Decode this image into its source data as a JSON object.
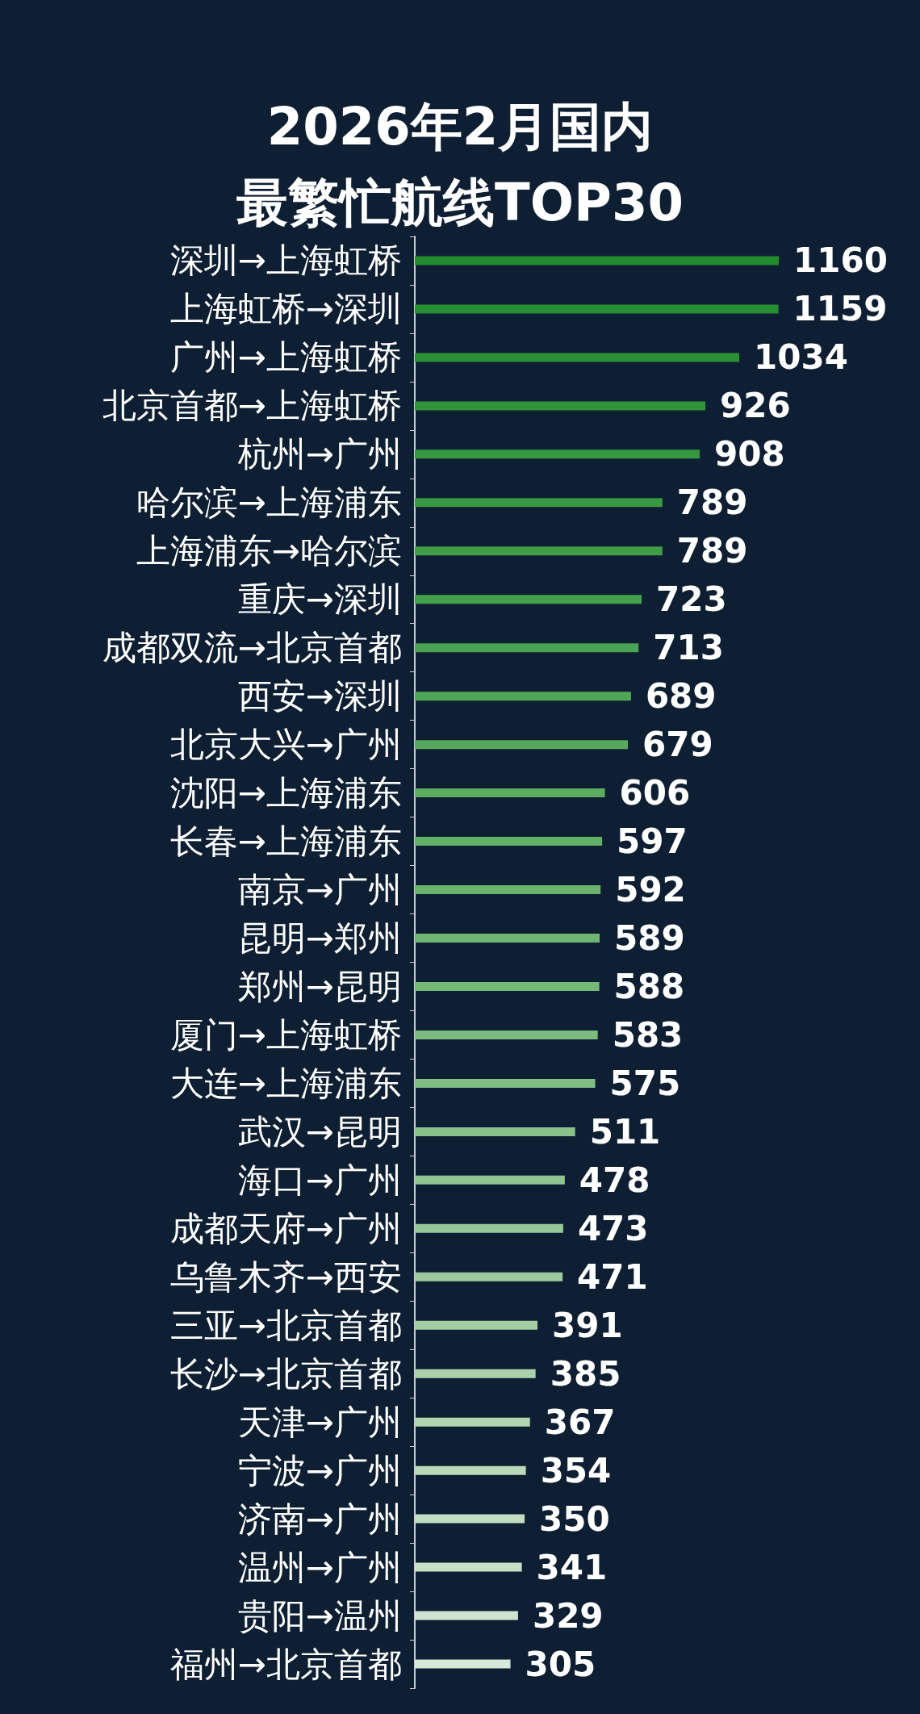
{
  "chart_data": {
    "type": "bar",
    "orientation": "horizontal",
    "title": "2026年2月国内",
    "subtitle": "最繁忙航线TOP30",
    "categories": [
      "深圳→上海虹桥",
      "上海虹桥→深圳",
      "广州→上海虹桥",
      "北京首都→上海虹桥",
      "杭州→广州",
      "哈尔滨→上海浦东",
      "上海浦东→哈尔滨",
      "重庆→深圳",
      "成都双流→北京首都",
      "西安→深圳",
      "北京大兴→广州",
      "沈阳→上海浦东",
      "长春→上海浦东",
      "南京→广州",
      "昆明→郑州",
      "郑州→昆明",
      "厦门→上海虹桥",
      "大连→上海浦东",
      "武汉→昆明",
      "海口→广州",
      "成都天府→广州",
      "乌鲁木齐→西安",
      "三亚→北京首都",
      "长沙→北京首都",
      "天津→广州",
      "宁波→广州",
      "济南→广州",
      "温州→广州",
      "贵阳→温州",
      "福州→北京首都"
    ],
    "values": [
      1160,
      1159,
      1034,
      926,
      908,
      789,
      789,
      723,
      713,
      689,
      679,
      606,
      597,
      592,
      589,
      588,
      583,
      575,
      511,
      478,
      473,
      471,
      391,
      385,
      367,
      354,
      350,
      341,
      329,
      305
    ],
    "colors": [
      "#228b2e",
      "#268e32",
      "#2b9137",
      "#30943b",
      "#35973f",
      "#3a9a44",
      "#3f9d48",
      "#45a04d",
      "#4aa352",
      "#50a657",
      "#56a95c",
      "#5cac61",
      "#62af67",
      "#68b26c",
      "#6eb572",
      "#74b878",
      "#7bbb7e",
      "#81be84",
      "#88c28a",
      "#8fc590",
      "#96c897",
      "#9dcb9d",
      "#a4cfa4",
      "#abd2ab",
      "#b2d6b2",
      "#b9d9b9",
      "#c0ddc0",
      "#c7e0c7",
      "#cee4ce",
      "#d6e8d6"
    ],
    "data_labels": true
  }
}
